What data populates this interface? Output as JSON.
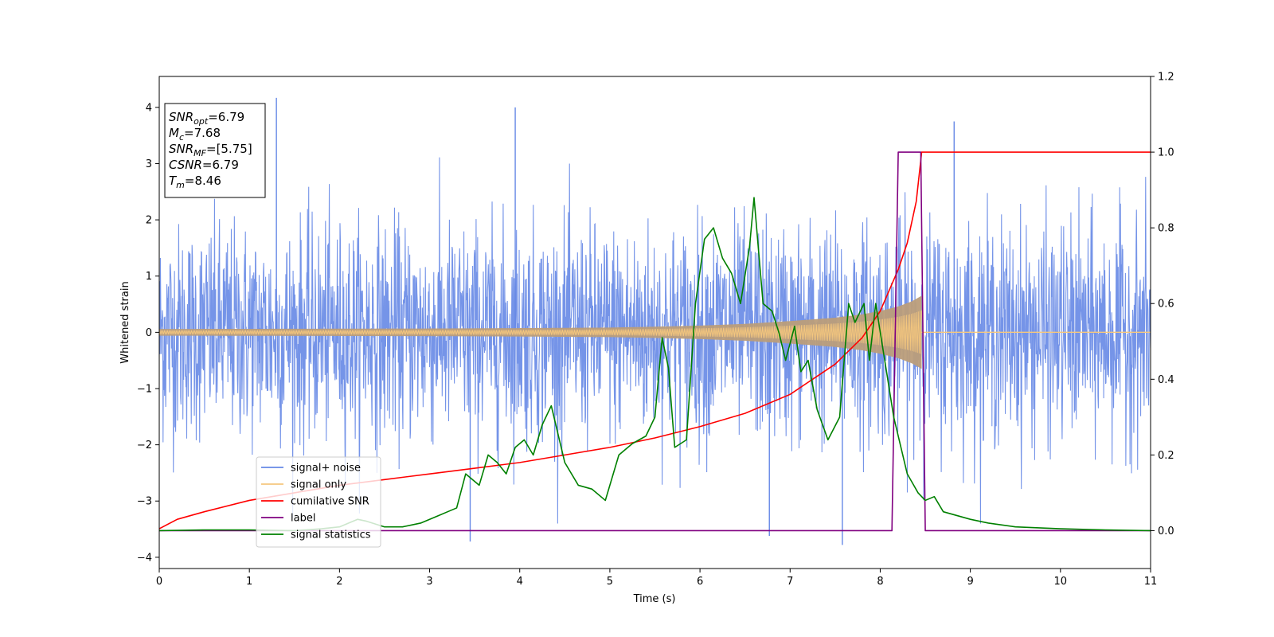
{
  "chart_data": {
    "type": "line",
    "xlabel": "Time (s)",
    "ylabel": "Whitened strain",
    "xlim": [
      0,
      11
    ],
    "ylim": [
      -4.2,
      4.55
    ],
    "y2lim": [
      -0.1,
      1.2
    ],
    "xticks": [
      "0",
      "1",
      "2",
      "3",
      "4",
      "5",
      "6",
      "7",
      "8",
      "9",
      "10",
      "11"
    ],
    "yticks": [
      {
        "v": 4,
        "label": "4"
      },
      {
        "v": 3,
        "label": "3"
      },
      {
        "v": 2,
        "label": "2"
      },
      {
        "v": 1,
        "label": "1"
      },
      {
        "v": 0,
        "label": "0"
      },
      {
        "v": -1,
        "label": "−1"
      },
      {
        "v": -2,
        "label": "−2"
      },
      {
        "v": -3,
        "label": "−3"
      },
      {
        "v": -4,
        "label": "−4"
      }
    ],
    "y2ticks": [
      {
        "v": 0.0,
        "label": "0.0"
      },
      {
        "v": 0.2,
        "label": "0.2"
      },
      {
        "v": 0.4,
        "label": "0.4"
      },
      {
        "v": 0.6,
        "label": "0.6"
      },
      {
        "v": 0.8,
        "label": "0.8"
      },
      {
        "v": 1.0,
        "label": "1.0"
      },
      {
        "v": 1.2,
        "label": "1.2"
      }
    ],
    "grid": false,
    "legend_position": "lower-left",
    "annotation_box": {
      "position": "upper-left",
      "lines": [
        {
          "main": "SNR",
          "sub": "opt",
          "value": "=6.79"
        },
        {
          "main": "M",
          "sub": "c",
          "value": "=7.68"
        },
        {
          "main": "SNR",
          "sub": "MF",
          "value": "=[5.75]"
        },
        {
          "main": "CSNR",
          "sub": "",
          "value": "=6.79"
        },
        {
          "main": "T",
          "sub": "m",
          "value": "=8.46"
        }
      ]
    },
    "series": [
      {
        "name": "signal+ noise",
        "color": "#6688e6",
        "axis": "left",
        "kind": "noise",
        "sigma": 0.95,
        "peak_examples": [
          {
            "x": 1.3,
            "y": 4.17
          },
          {
            "x": 3.95,
            "y": 4.0
          },
          {
            "x": 7.58,
            "y": -3.78
          },
          {
            "x": 3.45,
            "y": -3.72
          },
          {
            "x": 8.82,
            "y": 3.75
          },
          {
            "x": 6.77,
            "y": -3.62
          }
        ]
      },
      {
        "name": "signal only",
        "color": "#f5c77e",
        "overlap_color": "#bb9d7a",
        "axis": "left",
        "kind": "chirp",
        "merger_time": 8.46,
        "envelope": [
          [
            0,
            0.06
          ],
          [
            1,
            0.062
          ],
          [
            2,
            0.065
          ],
          [
            3,
            0.068
          ],
          [
            4,
            0.075
          ],
          [
            5,
            0.085
          ],
          [
            5.5,
            0.1
          ],
          [
            6,
            0.12
          ],
          [
            6.5,
            0.15
          ],
          [
            7,
            0.2
          ],
          [
            7.5,
            0.26
          ],
          [
            7.8,
            0.32
          ],
          [
            8.0,
            0.38
          ],
          [
            8.2,
            0.46
          ],
          [
            8.35,
            0.55
          ],
          [
            8.46,
            0.65
          ]
        ]
      },
      {
        "name": "cumilative SNR",
        "color": "#ff0000",
        "axis": "right",
        "points": [
          [
            0,
            0.005
          ],
          [
            0.2,
            0.03
          ],
          [
            0.5,
            0.05
          ],
          [
            1,
            0.08
          ],
          [
            1.5,
            0.1
          ],
          [
            2,
            0.12
          ],
          [
            2.5,
            0.135
          ],
          [
            3,
            0.15
          ],
          [
            3.5,
            0.165
          ],
          [
            4,
            0.18
          ],
          [
            4.5,
            0.2
          ],
          [
            5,
            0.22
          ],
          [
            5.5,
            0.245
          ],
          [
            6,
            0.275
          ],
          [
            6.5,
            0.31
          ],
          [
            7,
            0.36
          ],
          [
            7.5,
            0.44
          ],
          [
            7.8,
            0.51
          ],
          [
            8.0,
            0.58
          ],
          [
            8.2,
            0.69
          ],
          [
            8.3,
            0.76
          ],
          [
            8.4,
            0.87
          ],
          [
            8.46,
            1.0
          ],
          [
            11,
            1.0
          ]
        ]
      },
      {
        "name": "label",
        "color": "#800080",
        "axis": "right",
        "points": [
          [
            0,
            0
          ],
          [
            8.13,
            0
          ],
          [
            8.2,
            1.0
          ],
          [
            8.45,
            1.0
          ],
          [
            8.5,
            0
          ],
          [
            11,
            0
          ]
        ]
      },
      {
        "name": "signal statistics",
        "color": "#008000",
        "axis": "right",
        "points": [
          [
            0,
            0
          ],
          [
            0.5,
            0.002
          ],
          [
            1,
            0.002
          ],
          [
            1.5,
            0.0
          ],
          [
            1.8,
            0.005
          ],
          [
            2.0,
            0.01
          ],
          [
            2.2,
            0.03
          ],
          [
            2.3,
            0.025
          ],
          [
            2.5,
            0.01
          ],
          [
            2.7,
            0.01
          ],
          [
            2.9,
            0.02
          ],
          [
            3.0,
            0.03
          ],
          [
            3.1,
            0.04
          ],
          [
            3.2,
            0.05
          ],
          [
            3.3,
            0.06
          ],
          [
            3.4,
            0.15
          ],
          [
            3.55,
            0.12
          ],
          [
            3.65,
            0.2
          ],
          [
            3.75,
            0.18
          ],
          [
            3.85,
            0.15
          ],
          [
            3.95,
            0.22
          ],
          [
            4.05,
            0.24
          ],
          [
            4.15,
            0.2
          ],
          [
            4.25,
            0.28
          ],
          [
            4.35,
            0.33
          ],
          [
            4.5,
            0.18
          ],
          [
            4.65,
            0.12
          ],
          [
            4.8,
            0.11
          ],
          [
            4.95,
            0.08
          ],
          [
            5.1,
            0.2
          ],
          [
            5.25,
            0.23
          ],
          [
            5.4,
            0.25
          ],
          [
            5.5,
            0.3
          ],
          [
            5.58,
            0.51
          ],
          [
            5.65,
            0.43
          ],
          [
            5.72,
            0.22
          ],
          [
            5.85,
            0.24
          ],
          [
            5.95,
            0.6
          ],
          [
            6.05,
            0.77
          ],
          [
            6.15,
            0.8
          ],
          [
            6.25,
            0.72
          ],
          [
            6.35,
            0.68
          ],
          [
            6.45,
            0.6
          ],
          [
            6.55,
            0.75
          ],
          [
            6.6,
            0.88
          ],
          [
            6.7,
            0.6
          ],
          [
            6.8,
            0.58
          ],
          [
            6.88,
            0.52
          ],
          [
            6.95,
            0.45
          ],
          [
            7.05,
            0.54
          ],
          [
            7.12,
            0.42
          ],
          [
            7.2,
            0.45
          ],
          [
            7.3,
            0.32
          ],
          [
            7.42,
            0.24
          ],
          [
            7.55,
            0.3
          ],
          [
            7.65,
            0.6
          ],
          [
            7.72,
            0.55
          ],
          [
            7.82,
            0.6
          ],
          [
            7.88,
            0.45
          ],
          [
            7.95,
            0.6
          ],
          [
            8.05,
            0.45
          ],
          [
            8.15,
            0.3
          ],
          [
            8.3,
            0.15
          ],
          [
            8.42,
            0.1
          ],
          [
            8.5,
            0.08
          ],
          [
            8.6,
            0.09
          ],
          [
            8.7,
            0.05
          ],
          [
            8.85,
            0.04
          ],
          [
            9.0,
            0.03
          ],
          [
            9.2,
            0.02
          ],
          [
            9.5,
            0.01
          ],
          [
            10,
            0.005
          ],
          [
            10.5,
            0.002
          ],
          [
            11,
            0.0
          ]
        ]
      }
    ]
  }
}
